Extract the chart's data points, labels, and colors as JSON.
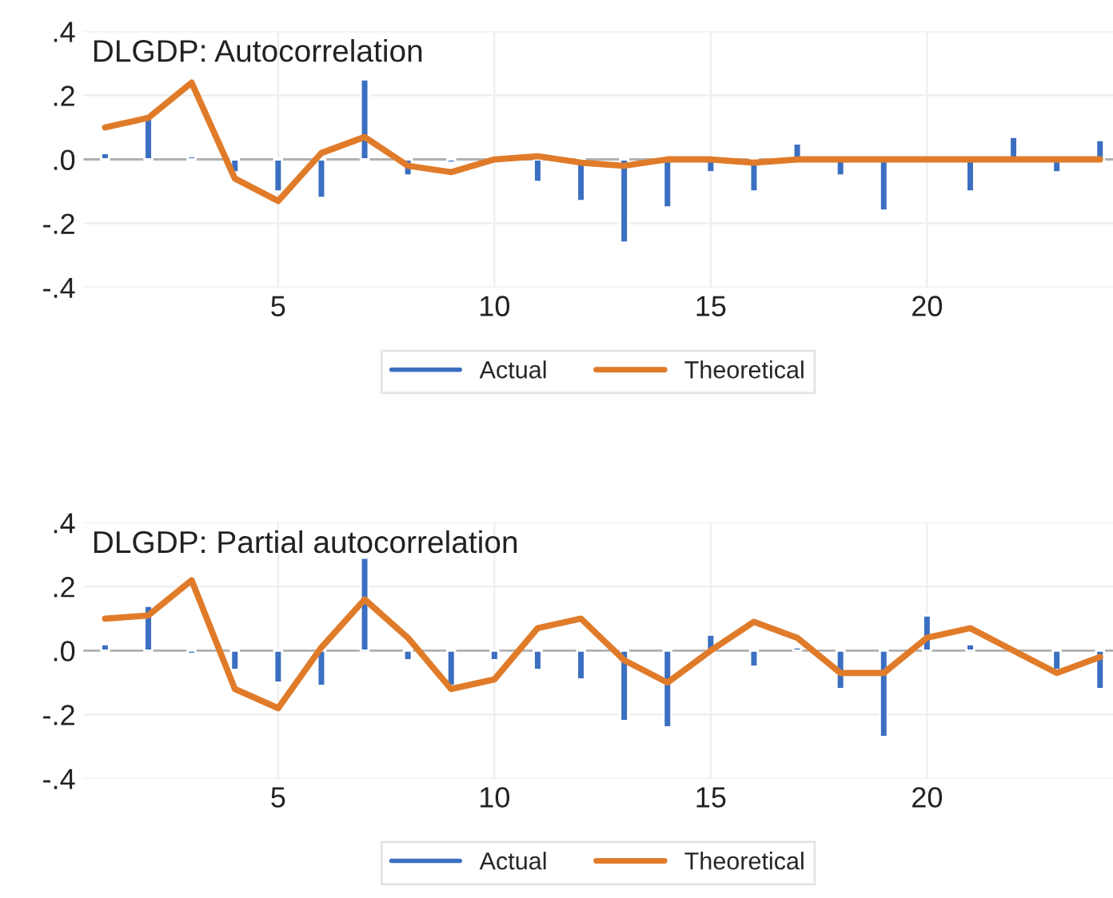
{
  "chart_data": [
    {
      "type": "bar",
      "title": "DLGDP: Autocorrelation",
      "x": [
        1,
        2,
        3,
        4,
        5,
        6,
        7,
        8,
        9,
        10,
        11,
        12,
        13,
        14,
        15,
        16,
        17,
        18,
        19,
        20,
        21,
        22,
        23,
        24
      ],
      "series": [
        {
          "name": "Actual",
          "color": "#3a6fc1",
          "values": [
            0.02,
            0.14,
            0.01,
            -0.04,
            -0.1,
            -0.12,
            0.25,
            -0.05,
            -0.01,
            null,
            -0.07,
            -0.13,
            -0.26,
            -0.15,
            -0.04,
            -0.1,
            0.05,
            -0.05,
            -0.16,
            null,
            -0.1,
            0.07,
            -0.04,
            0.06
          ]
        },
        {
          "name": "Theoretical",
          "type": "line",
          "color": "#e07b2a",
          "values": [
            0.1,
            0.13,
            0.24,
            -0.06,
            -0.13,
            0.02,
            0.07,
            -0.02,
            -0.04,
            0.0,
            0.01,
            -0.01,
            -0.02,
            0.0,
            0.0,
            -0.01,
            0.0,
            0.0,
            0.0,
            0.0,
            0.0,
            0.0,
            0.0,
            0.0
          ]
        }
      ],
      "xlim": [
        0.5,
        24.3
      ],
      "xticks": [
        5,
        10,
        15,
        20
      ],
      "ylim": [
        -0.4,
        0.4
      ],
      "yticks": [
        {
          "value": -0.4,
          "label": "-.4"
        },
        {
          "value": -0.2,
          "label": "-.2"
        },
        {
          "value": 0.0,
          "label": ".0"
        },
        {
          "value": 0.2,
          "label": ".2"
        },
        {
          "value": 0.4,
          "label": ".4"
        }
      ],
      "grid": true,
      "legend": "bottom",
      "line_style": "solid",
      "marker": "none",
      "ref_lines": [
        {
          "axis": "y",
          "value": 0,
          "color": "#b0b0b0"
        }
      ]
    },
    {
      "type": "bar",
      "title": "DLGDP: Partial autocorrelation",
      "x": [
        1,
        2,
        3,
        4,
        5,
        6,
        7,
        8,
        9,
        10,
        11,
        12,
        13,
        14,
        15,
        16,
        17,
        18,
        19,
        20,
        21,
        22,
        23,
        24
      ],
      "series": [
        {
          "name": "Actual",
          "color": "#3a6fc1",
          "values": [
            0.02,
            0.14,
            -0.01,
            -0.06,
            -0.1,
            -0.11,
            0.29,
            -0.03,
            -0.11,
            -0.03,
            -0.06,
            -0.09,
            -0.22,
            -0.24,
            0.05,
            -0.05,
            0.01,
            -0.12,
            -0.27,
            0.11,
            0.02,
            null,
            -0.06,
            -0.12
          ]
        },
        {
          "name": "Theoretical",
          "type": "line",
          "color": "#e07b2a",
          "values": [
            0.1,
            0.11,
            0.22,
            -0.12,
            -0.18,
            0.01,
            0.16,
            0.04,
            -0.12,
            -0.09,
            0.07,
            0.1,
            -0.03,
            -0.1,
            0.0,
            0.09,
            0.04,
            -0.07,
            -0.07,
            0.04,
            0.07,
            0.0,
            -0.07,
            -0.02
          ]
        }
      ],
      "xlim": [
        0.5,
        24.3
      ],
      "xticks": [
        5,
        10,
        15,
        20
      ],
      "ylim": [
        -0.4,
        0.4
      ],
      "yticks": [
        {
          "value": -0.4,
          "label": "-.4"
        },
        {
          "value": -0.2,
          "label": "-.2"
        },
        {
          "value": 0.0,
          "label": ".0"
        },
        {
          "value": 0.2,
          "label": ".2"
        },
        {
          "value": 0.4,
          "label": ".4"
        }
      ],
      "grid": true,
      "legend": "bottom",
      "line_style": "solid",
      "marker": "none",
      "ref_lines": [
        {
          "axis": "y",
          "value": 0,
          "color": "#b0b0b0"
        }
      ]
    }
  ]
}
